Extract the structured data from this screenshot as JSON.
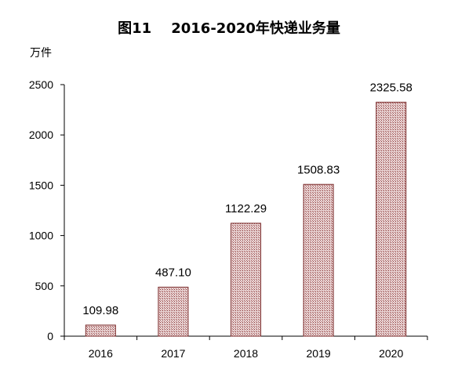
{
  "chart_data": {
    "type": "bar",
    "title": "图11    2016-2020年快递业务量",
    "unit_label": "万件",
    "xlabel": "",
    "ylabel": "",
    "categories": [
      "2016",
      "2017",
      "2018",
      "2019",
      "2020"
    ],
    "values": [
      109.98,
      487.1,
      1122.29,
      1508.83,
      2325.58
    ],
    "value_labels": [
      "109.98",
      "487.10",
      "1122.29",
      "1508.83",
      "2325.58"
    ],
    "y_ticks": [
      0,
      500,
      1000,
      1500,
      2000,
      2500
    ],
    "ylim": [
      0,
      2500
    ],
    "grid": false,
    "legend": "none",
    "bar_color": "#c89a9a",
    "bar_outline_color": "#7a2a2a",
    "axis_color": "#000000"
  }
}
